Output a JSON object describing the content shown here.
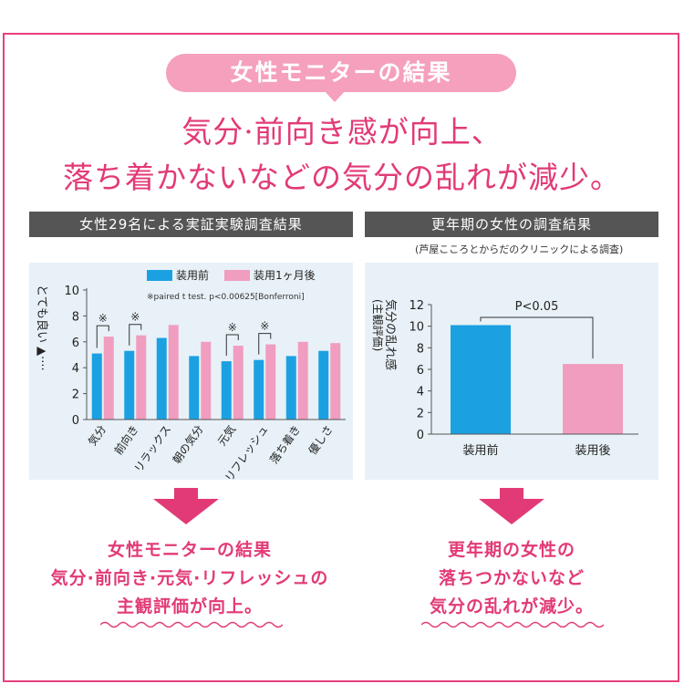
{
  "header": {
    "pill_label": "女性モニターの結果",
    "headline_1": "気分·前向き感が向上、",
    "headline_2": "落ち着かないなどの気分の乱れが減少。"
  },
  "left": {
    "header": "女性29名による実証実験調査結果",
    "note": "※paired t test. p<0.00625[Bonferroni]",
    "ylabel": "とても良い",
    "result_lines": [
      "女性モニターの結果",
      "気分·前向き·元気·リフレッシュの",
      "主観評価が向上。"
    ]
  },
  "right": {
    "header": "更年期の女性の調査結果",
    "caption": "(芦屋こころとからだのクリニックによる調査)",
    "sig": "P<0.05",
    "ylabel": "気分の乱れ感",
    "ylabel_sub": "(主観評価)",
    "result_lines": [
      "更年期の女性の",
      "落ちつかないなど",
      "気分の乱れが減少。"
    ]
  },
  "colors": {
    "before": "#1ba1e2",
    "after": "#f09dc0",
    "accent": "#e23a77",
    "frame": "#e8407e"
  },
  "chart_data": [
    {
      "type": "bar",
      "categories": [
        "気分",
        "前向き",
        "リラックス",
        "朝の気分",
        "元気",
        "リフレッシュ",
        "落ち着き",
        "優しさ"
      ],
      "series": [
        {
          "name": "装用前",
          "values": [
            5.1,
            5.3,
            6.3,
            4.9,
            4.5,
            4.6,
            4.9,
            5.3
          ]
        },
        {
          "name": "装用1ヶ月後",
          "values": [
            6.4,
            6.5,
            7.3,
            6.0,
            5.7,
            5.8,
            6.0,
            5.9
          ]
        }
      ],
      "significant": [
        "※",
        "※",
        "",
        "",
        "※",
        "※",
        "",
        ""
      ],
      "ylim": [
        0,
        10
      ],
      "yticks": [
        0,
        2,
        4,
        6,
        8,
        10
      ],
      "legend": "top"
    },
    {
      "type": "bar",
      "categories": [
        "装用前",
        "装用後"
      ],
      "values": [
        10.1,
        6.5
      ],
      "ylim": [
        0,
        12
      ],
      "yticks": [
        0,
        2,
        4,
        6,
        8,
        10,
        12
      ],
      "annotation": "P<0.05"
    }
  ]
}
